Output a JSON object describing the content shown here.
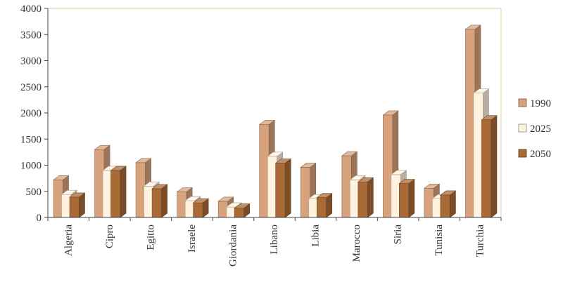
{
  "chart_data": {
    "type": "bar",
    "title": "",
    "xlabel": "",
    "ylabel": "",
    "categories": [
      "Algeria",
      "Cipro",
      "Egitto",
      "Israele",
      "Giordania",
      "Libano",
      "Libia",
      "Marocco",
      "Siria",
      "Tunisia",
      "Turchia"
    ],
    "series": [
      {
        "name": "1990",
        "values": [
          720,
          1300,
          1050,
          490,
          310,
          1780,
          960,
          1180,
          1960,
          560,
          3600
        ],
        "color": "#d7a27c"
      },
      {
        "name": "2025",
        "values": [
          440,
          900,
          600,
          320,
          200,
          1170,
          360,
          720,
          820,
          360,
          2380
        ],
        "color": "#fff3e0"
      },
      {
        "name": "2050",
        "values": [
          390,
          900,
          550,
          280,
          180,
          1040,
          380,
          680,
          650,
          430,
          1870
        ],
        "color": "#a96a36"
      }
    ],
    "ylim": [
      0,
      4000
    ],
    "yticks": [
      0,
      500,
      1000,
      1500,
      2000,
      2500,
      3000,
      3500,
      4000
    ],
    "grid": false,
    "legend_position": "right"
  }
}
